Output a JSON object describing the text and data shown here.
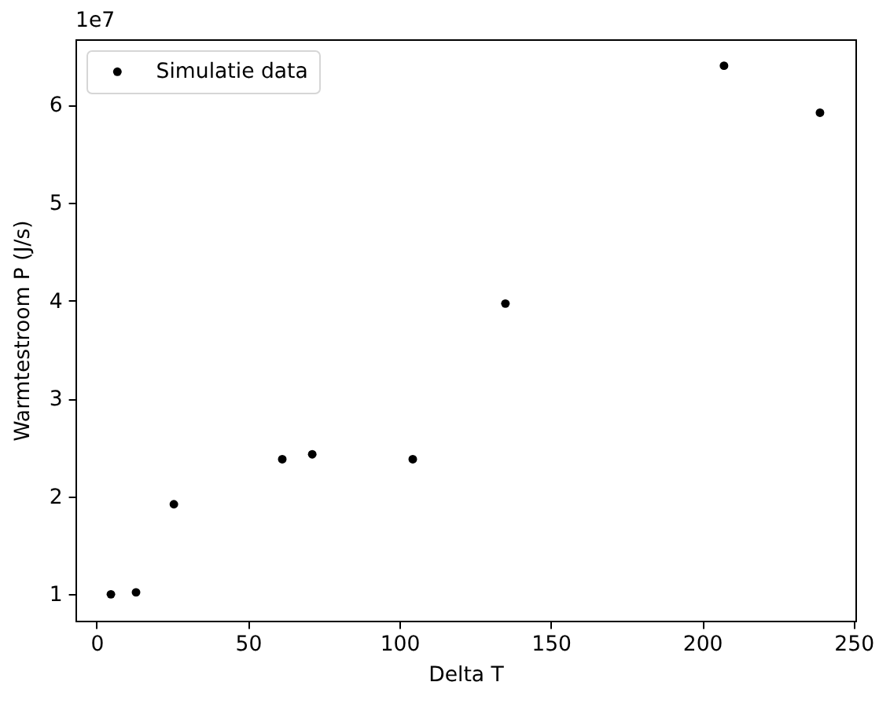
{
  "chart_data": {
    "type": "scatter",
    "xlabel": "Delta T",
    "ylabel": "Warmtestroom P (J/s)",
    "x": [
      4.7,
      13.0,
      25.5,
      61.3,
      71.2,
      104.4,
      135.0,
      207.2,
      238.9
    ],
    "series": [
      {
        "name": "Simulatie data",
        "color": "#000000",
        "values": [
          1.0,
          1.02,
          1.92,
          2.38,
          2.43,
          2.38,
          3.97,
          6.4,
          5.92
        ]
      }
    ],
    "xlim": [
      -7,
      250.6
    ],
    "xticks": [
      0,
      50,
      100,
      150,
      200,
      250
    ],
    "ylim": [
      0.73,
      6.67
    ],
    "yticks": [
      1,
      2,
      3,
      4,
      5,
      6
    ],
    "legend": "top left",
    "marker": "circle",
    "annotations": [
      "1e7"
    ]
  }
}
